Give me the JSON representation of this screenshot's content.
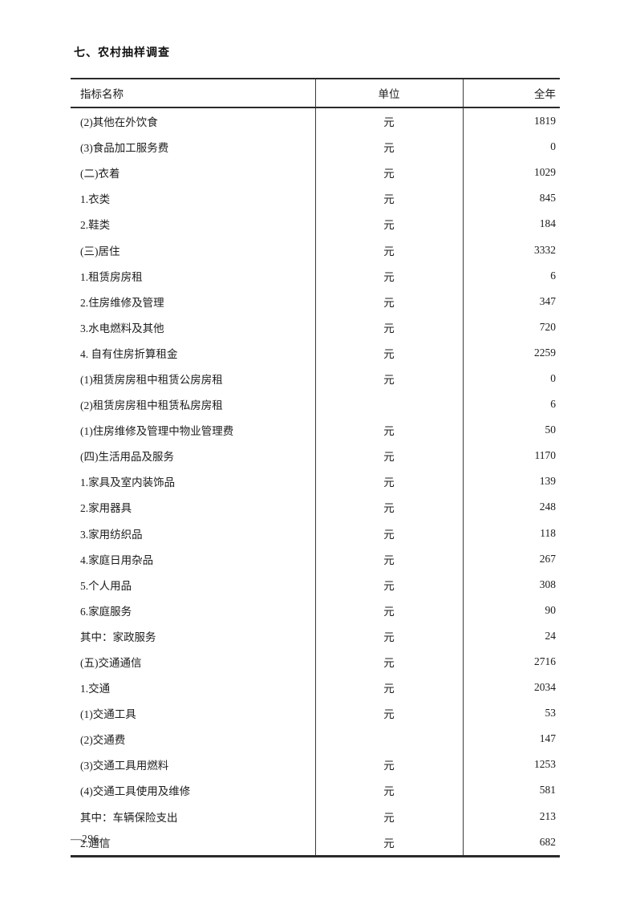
{
  "page": {
    "section_title": "七、农村抽样调查",
    "page_number": "—296—"
  },
  "colors": {
    "background": "#ffffff",
    "text": "#1c1c1c",
    "border": "#2b2b2b"
  },
  "table": {
    "columns": [
      {
        "key": "name",
        "label": "指标名称"
      },
      {
        "key": "unit",
        "label": "单位"
      },
      {
        "key": "value",
        "label": "全年"
      }
    ],
    "rows": [
      {
        "name": "(2)其他在外饮食",
        "unit": "元",
        "value": "1819"
      },
      {
        "name": "(3)食品加工服务费",
        "unit": "元",
        "value": "0"
      },
      {
        "name": "(二)衣着",
        "unit": "元",
        "value": "1029"
      },
      {
        "name": "1.衣类",
        "unit": "元",
        "value": "845"
      },
      {
        "name": "2.鞋类",
        "unit": "元",
        "value": "184"
      },
      {
        "name": "(三)居住",
        "unit": "元",
        "value": "3332"
      },
      {
        "name": "1.租赁房房租",
        "unit": "元",
        "value": "6"
      },
      {
        "name": "2.住房维修及管理",
        "unit": "元",
        "value": "347"
      },
      {
        "name": "3.水电燃料及其他",
        "unit": "元",
        "value": "720"
      },
      {
        "name": "4. 自有住房折算租金",
        "unit": "元",
        "value": "2259"
      },
      {
        "name": "(1)租赁房房租中租赁公房房租",
        "unit": "元",
        "value": "0"
      },
      {
        "name": "(2)租赁房房租中租赁私房房租",
        "unit": "",
        "value": "6"
      },
      {
        "name": "(1)住房维修及管理中物业管理费",
        "unit": "元",
        "value": "50"
      },
      {
        "name": "(四)生活用品及服务",
        "unit": "元",
        "value": "1170"
      },
      {
        "name": "1.家具及室内装饰品",
        "unit": "元",
        "value": "139"
      },
      {
        "name": "2.家用器具",
        "unit": "元",
        "value": "248"
      },
      {
        "name": "3.家用纺织品",
        "unit": "元",
        "value": "118"
      },
      {
        "name": "4.家庭日用杂品",
        "unit": "元",
        "value": "267"
      },
      {
        "name": "5.个人用品",
        "unit": "元",
        "value": "308"
      },
      {
        "name": "6.家庭服务",
        "unit": "元",
        "value": "90"
      },
      {
        "name": "其中：家政服务",
        "unit": "元",
        "value": "24"
      },
      {
        "name": "(五)交通通信",
        "unit": "元",
        "value": "2716"
      },
      {
        "name": "1.交通",
        "unit": "元",
        "value": "2034"
      },
      {
        "name": "(1)交通工具",
        "unit": "元",
        "value": "53"
      },
      {
        "name": "(2)交通费",
        "unit": "",
        "value": "147"
      },
      {
        "name": "(3)交通工具用燃料",
        "unit": "元",
        "value": "1253"
      },
      {
        "name": "(4)交通工具使用及维修",
        "unit": "元",
        "value": "581"
      },
      {
        "name": "其中：车辆保险支出",
        "unit": "元",
        "value": "213"
      },
      {
        "name": "2.通信",
        "unit": "元",
        "value": "682"
      }
    ]
  }
}
